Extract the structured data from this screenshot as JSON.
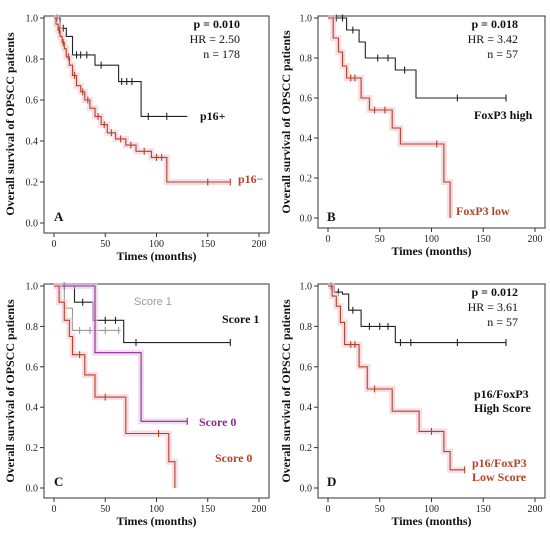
{
  "chart_data": [
    {
      "type": "line",
      "panel": "A",
      "xlabel": "Times (months)",
      "ylabel": "Overall survival of OPSCC patients",
      "xlim": [
        0,
        200
      ],
      "ylim": [
        0,
        1.0
      ],
      "xticks": [
        0,
        50,
        100,
        150,
        200
      ],
      "yticks": [
        0.0,
        0.2,
        0.4,
        0.6,
        0.8,
        1.0
      ],
      "stats": {
        "p": "p = 0.010",
        "hr": "HR = 2.50",
        "n": "n = 178"
      },
      "series": [
        {
          "name": "p16+",
          "color": "#222222",
          "label_color": "#111111",
          "points": [
            [
              0,
              1.0
            ],
            [
              6,
              1.0
            ],
            [
              6,
              0.95
            ],
            [
              12,
              0.95
            ],
            [
              12,
              0.91
            ],
            [
              18,
              0.91
            ],
            [
              18,
              0.82
            ],
            [
              40,
              0.82
            ],
            [
              40,
              0.77
            ],
            [
              63,
              0.77
            ],
            [
              63,
              0.69
            ],
            [
              85,
              0.69
            ],
            [
              85,
              0.52
            ],
            [
              130,
              0.52
            ]
          ],
          "censors": [
            [
              3,
              1.0
            ],
            [
              9,
              0.95
            ],
            [
              22,
              0.82
            ],
            [
              26,
              0.82
            ],
            [
              32,
              0.82
            ],
            [
              46,
              0.77
            ],
            [
              66,
              0.69
            ],
            [
              71,
              0.69
            ],
            [
              76,
              0.69
            ],
            [
              92,
              0.52
            ],
            [
              110,
              0.52
            ]
          ]
        },
        {
          "name": "p16−",
          "color": "#b5432a",
          "label_color": "#b5432a",
          "points": [
            [
              0,
              1.0
            ],
            [
              2,
              1.0
            ],
            [
              2,
              0.97
            ],
            [
              4,
              0.97
            ],
            [
              4,
              0.94
            ],
            [
              6,
              0.94
            ],
            [
              6,
              0.91
            ],
            [
              8,
              0.91
            ],
            [
              8,
              0.88
            ],
            [
              10,
              0.88
            ],
            [
              10,
              0.85
            ],
            [
              12,
              0.85
            ],
            [
              12,
              0.81
            ],
            [
              15,
              0.81
            ],
            [
              15,
              0.77
            ],
            [
              18,
              0.77
            ],
            [
              18,
              0.72
            ],
            [
              22,
              0.72
            ],
            [
              22,
              0.67
            ],
            [
              26,
              0.67
            ],
            [
              26,
              0.64
            ],
            [
              30,
              0.64
            ],
            [
              30,
              0.6
            ],
            [
              35,
              0.6
            ],
            [
              35,
              0.56
            ],
            [
              40,
              0.56
            ],
            [
              40,
              0.52
            ],
            [
              46,
              0.52
            ],
            [
              46,
              0.48
            ],
            [
              52,
              0.48
            ],
            [
              52,
              0.44
            ],
            [
              60,
              0.44
            ],
            [
              60,
              0.41
            ],
            [
              70,
              0.41
            ],
            [
              70,
              0.38
            ],
            [
              80,
              0.38
            ],
            [
              80,
              0.35
            ],
            [
              95,
              0.35
            ],
            [
              95,
              0.32
            ],
            [
              110,
              0.32
            ],
            [
              110,
              0.2
            ],
            [
              172,
              0.2
            ]
          ],
          "censors": [
            [
              5,
              0.94
            ],
            [
              9,
              0.88
            ],
            [
              14,
              0.81
            ],
            [
              20,
              0.72
            ],
            [
              28,
              0.64
            ],
            [
              33,
              0.6
            ],
            [
              43,
              0.52
            ],
            [
              49,
              0.48
            ],
            [
              56,
              0.44
            ],
            [
              65,
              0.41
            ],
            [
              75,
              0.38
            ],
            [
              88,
              0.35
            ],
            [
              100,
              0.32
            ],
            [
              105,
              0.32
            ],
            [
              150,
              0.2
            ],
            [
              172,
              0.2
            ]
          ]
        }
      ]
    },
    {
      "type": "line",
      "panel": "B",
      "xlabel": "Times (months)",
      "ylabel": "Overall survival of OPSCC patients",
      "xlim": [
        0,
        200
      ],
      "ylim": [
        0,
        1.0
      ],
      "xticks": [
        0,
        50,
        100,
        150,
        200
      ],
      "yticks": [
        0.0,
        0.2,
        0.4,
        0.6,
        0.8,
        1.0
      ],
      "stats": {
        "p": "p = 0.018",
        "hr": "HR = 3.42",
        "n": "n = 57"
      },
      "series": [
        {
          "name": "FoxP3 high",
          "color": "#222222",
          "label_color": "#111111",
          "points": [
            [
              0,
              1.0
            ],
            [
              18,
              1.0
            ],
            [
              18,
              0.94
            ],
            [
              30,
              0.94
            ],
            [
              30,
              0.88
            ],
            [
              36,
              0.88
            ],
            [
              36,
              0.8
            ],
            [
              65,
              0.8
            ],
            [
              65,
              0.74
            ],
            [
              85,
              0.74
            ],
            [
              85,
              0.6
            ],
            [
              172,
              0.6
            ]
          ],
          "censors": [
            [
              8,
              1.0
            ],
            [
              14,
              1.0
            ],
            [
              24,
              0.94
            ],
            [
              48,
              0.8
            ],
            [
              58,
              0.8
            ],
            [
              74,
              0.74
            ],
            [
              125,
              0.6
            ],
            [
              172,
              0.6
            ]
          ]
        },
        {
          "name": "FoxP3 low",
          "color": "#b5432a",
          "label_color": "#b5432a",
          "points": [
            [
              0,
              1.0
            ],
            [
              5,
              1.0
            ],
            [
              5,
              0.9
            ],
            [
              10,
              0.9
            ],
            [
              10,
              0.83
            ],
            [
              14,
              0.83
            ],
            [
              14,
              0.76
            ],
            [
              18,
              0.76
            ],
            [
              18,
              0.7
            ],
            [
              32,
              0.7
            ],
            [
              32,
              0.6
            ],
            [
              40,
              0.6
            ],
            [
              40,
              0.54
            ],
            [
              62,
              0.54
            ],
            [
              62,
              0.45
            ],
            [
              70,
              0.45
            ],
            [
              70,
              0.37
            ],
            [
              112,
              0.37
            ],
            [
              112,
              0.18
            ],
            [
              118,
              0.18
            ],
            [
              118,
              0.0
            ]
          ],
          "censors": [
            [
              22,
              0.7
            ],
            [
              26,
              0.7
            ],
            [
              45,
              0.54
            ],
            [
              55,
              0.54
            ],
            [
              105,
              0.37
            ]
          ]
        }
      ]
    },
    {
      "type": "line",
      "panel": "C",
      "xlabel": "Times (months)",
      "ylabel": "Overall survival of OPSCC patients",
      "xlim": [
        0,
        200
      ],
      "ylim": [
        0,
        1.0
      ],
      "xticks": [
        0,
        50,
        100,
        150,
        200
      ],
      "yticks": [
        0.0,
        0.2,
        0.4,
        0.6,
        0.8,
        1.0
      ],
      "stats": {
        "p": "",
        "hr": "",
        "n": ""
      },
      "series": [
        {
          "name": "Score 1",
          "color": "#9a9a9a",
          "label_color": "#9a9a9a",
          "label_style": "small",
          "points": [
            [
              0,
              1.0
            ],
            [
              10,
              1.0
            ],
            [
              10,
              0.89
            ],
            [
              18,
              0.89
            ],
            [
              18,
              0.78
            ],
            [
              65,
              0.78
            ]
          ],
          "censors": [
            [
              25,
              0.78
            ],
            [
              35,
              0.78
            ],
            [
              50,
              0.78
            ],
            [
              63,
              0.78
            ]
          ]
        },
        {
          "name": "Score 1",
          "color": "#222222",
          "label_color": "#111111",
          "points": [
            [
              0,
              1.0
            ],
            [
              20,
              1.0
            ],
            [
              20,
              0.92
            ],
            [
              38,
              0.92
            ],
            [
              38,
              0.83
            ],
            [
              68,
              0.83
            ],
            [
              68,
              0.72
            ],
            [
              172,
              0.72
            ]
          ],
          "censors": [
            [
              10,
              1.0
            ],
            [
              28,
              0.92
            ],
            [
              50,
              0.83
            ],
            [
              60,
              0.83
            ],
            [
              80,
              0.72
            ],
            [
              172,
              0.72
            ]
          ]
        },
        {
          "name": "Score 0",
          "color": "#8b2a8f",
          "label_color": "#8b2a8f",
          "points": [
            [
              0,
              1.0
            ],
            [
              40,
              1.0
            ],
            [
              40,
              0.67
            ],
            [
              85,
              0.67
            ],
            [
              85,
              0.33
            ],
            [
              130,
              0.33
            ]
          ],
          "censors": [
            [
              130,
              0.33
            ]
          ]
        },
        {
          "name": "Score 0",
          "color": "#b5432a",
          "label_color": "#b5432a",
          "points": [
            [
              0,
              1.0
            ],
            [
              5,
              1.0
            ],
            [
              5,
              0.92
            ],
            [
              10,
              0.92
            ],
            [
              10,
              0.83
            ],
            [
              15,
              0.83
            ],
            [
              15,
              0.75
            ],
            [
              18,
              0.75
            ],
            [
              18,
              0.66
            ],
            [
              30,
              0.66
            ],
            [
              30,
              0.56
            ],
            [
              40,
              0.56
            ],
            [
              40,
              0.45
            ],
            [
              70,
              0.45
            ],
            [
              70,
              0.27
            ],
            [
              112,
              0.27
            ],
            [
              112,
              0.13
            ],
            [
              118,
              0.13
            ],
            [
              118,
              0.0
            ]
          ],
          "censors": [
            [
              25,
              0.66
            ],
            [
              50,
              0.45
            ],
            [
              102,
              0.27
            ]
          ]
        }
      ]
    },
    {
      "type": "line",
      "panel": "D",
      "xlabel": "Times (months)",
      "ylabel": "Overall survival of OPSCC patients",
      "xlim": [
        0,
        200
      ],
      "ylim": [
        0,
        1.0
      ],
      "xticks": [
        0,
        50,
        100,
        150,
        200
      ],
      "yticks": [
        0.0,
        0.2,
        0.4,
        0.6,
        0.8,
        1.0
      ],
      "stats": {
        "p": "p = 0.012",
        "hr": "HR = 3.61",
        "n": "n = 57"
      },
      "series": [
        {
          "name": "p16/FoxP3|High Score",
          "color": "#222222",
          "label_color": "#111111",
          "points": [
            [
              0,
              1.0
            ],
            [
              6,
              1.0
            ],
            [
              6,
              0.97
            ],
            [
              14,
              0.97
            ],
            [
              14,
              0.96
            ],
            [
              20,
              0.96
            ],
            [
              20,
              0.88
            ],
            [
              32,
              0.88
            ],
            [
              32,
              0.8
            ],
            [
              65,
              0.8
            ],
            [
              65,
              0.72
            ],
            [
              172,
              0.72
            ]
          ],
          "censors": [
            [
              3,
              1.0
            ],
            [
              10,
              0.97
            ],
            [
              24,
              0.88
            ],
            [
              40,
              0.8
            ],
            [
              50,
              0.8
            ],
            [
              58,
              0.8
            ],
            [
              70,
              0.72
            ],
            [
              80,
              0.72
            ],
            [
              125,
              0.72
            ],
            [
              172,
              0.72
            ]
          ]
        },
        {
          "name": "p16/FoxP3|Low Score",
          "color": "#b5432a",
          "label_color": "#b5432a",
          "points": [
            [
              0,
              1.0
            ],
            [
              4,
              1.0
            ],
            [
              4,
              0.95
            ],
            [
              8,
              0.95
            ],
            [
              8,
              0.9
            ],
            [
              12,
              0.9
            ],
            [
              12,
              0.82
            ],
            [
              16,
              0.82
            ],
            [
              16,
              0.71
            ],
            [
              30,
              0.71
            ],
            [
              30,
              0.6
            ],
            [
              38,
              0.6
            ],
            [
              38,
              0.49
            ],
            [
              62,
              0.49
            ],
            [
              62,
              0.38
            ],
            [
              88,
              0.38
            ],
            [
              88,
              0.28
            ],
            [
              112,
              0.28
            ],
            [
              112,
              0.18
            ],
            [
              118,
              0.18
            ],
            [
              118,
              0.09
            ],
            [
              132,
              0.09
            ]
          ],
          "censors": [
            [
              22,
              0.71
            ],
            [
              26,
              0.71
            ],
            [
              45,
              0.49
            ],
            [
              100,
              0.28
            ],
            [
              132,
              0.09
            ]
          ]
        }
      ]
    }
  ]
}
